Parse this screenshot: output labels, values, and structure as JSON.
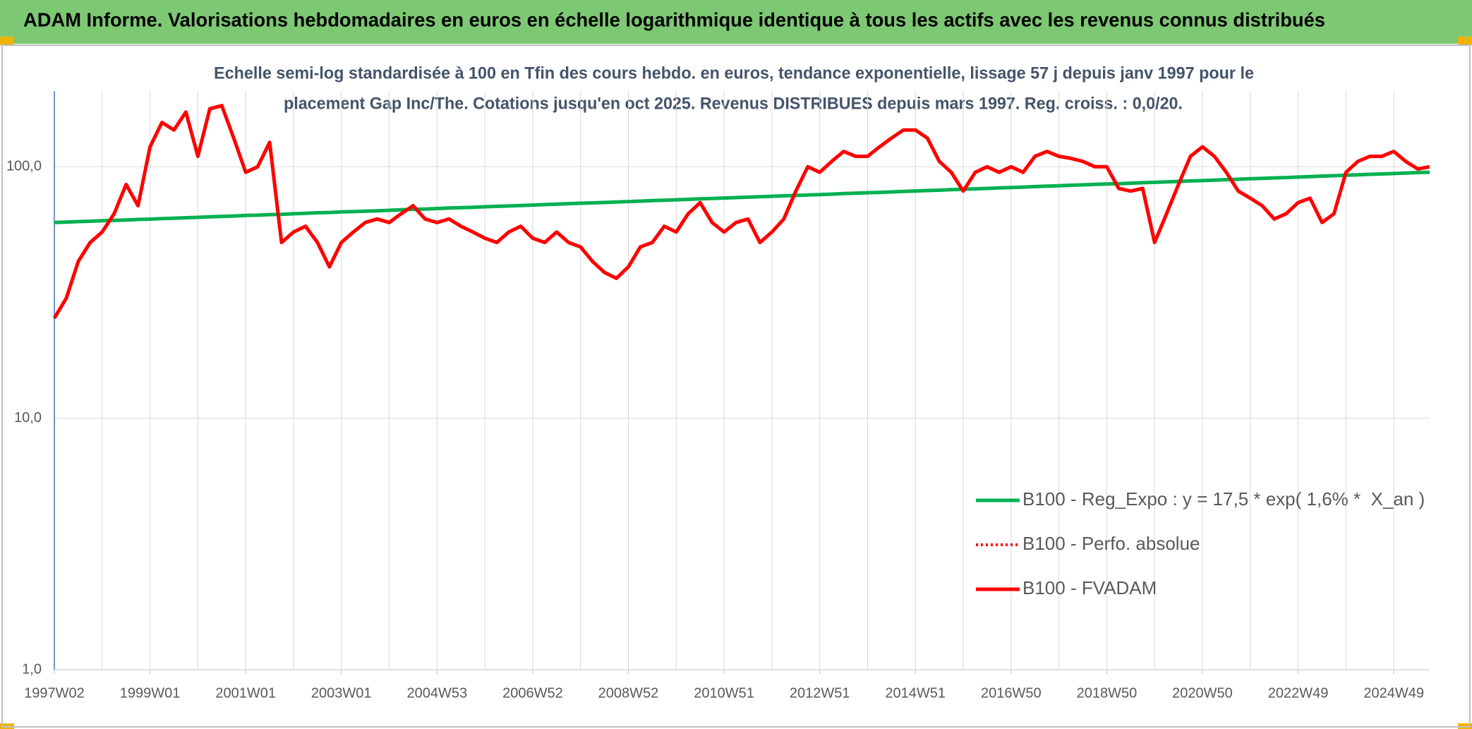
{
  "chart_data": {
    "type": "line",
    "title": "ADAM Informe. Valorisations hebdomadaires en euros en échelle logarithmique identique à tous les actifs avec les revenus connus distribués",
    "subtitle": [
      "Echelle semi-log standardisée à 100 en Tfin des cours hebdo. en euros, tendance exponentielle, lissage 57 j depuis janv 1997 pour le",
      "placement Gap Inc/The. Cotations jusqu'en oct 2025. Revenus DISTRIBUES depuis mars 1997. Reg. croiss. : 0,0/20."
    ],
    "log_scale": true,
    "grid": true,
    "legend": "right",
    "ylim": [
      1,
      200
    ],
    "yticks": [
      {
        "value": 1,
        "label": "1,0"
      },
      {
        "value": 10,
        "label": "10,0"
      },
      {
        "value": 100,
        "label": "100,0"
      }
    ],
    "categories": [
      "1997W02",
      null,
      null,
      null,
      null,
      null,
      null,
      null,
      "1999W01",
      null,
      null,
      null,
      null,
      null,
      null,
      null,
      "2001W01",
      null,
      null,
      null,
      null,
      null,
      null,
      null,
      "2003W01",
      null,
      null,
      null,
      null,
      null,
      null,
      null,
      "2004W53",
      null,
      null,
      null,
      null,
      null,
      null,
      null,
      "2006W52",
      null,
      null,
      null,
      null,
      null,
      null,
      null,
      "2008W52",
      null,
      null,
      null,
      null,
      null,
      null,
      null,
      "2010W51",
      null,
      null,
      null,
      null,
      null,
      null,
      null,
      "2012W51",
      null,
      null,
      null,
      null,
      null,
      null,
      null,
      "2014W51",
      null,
      null,
      null,
      null,
      null,
      null,
      null,
      "2016W50",
      null,
      null,
      null,
      null,
      null,
      null,
      null,
      "2018W50",
      null,
      null,
      null,
      null,
      null,
      null,
      null,
      "2020W50",
      null,
      null,
      null,
      null,
      null,
      null,
      null,
      "2022W49",
      null,
      null,
      null,
      null,
      null,
      null,
      null,
      "2024W49",
      null,
      null,
      null
    ],
    "series": [
      {
        "name": "B100 - Reg_Expo : y = 17,5 * exp( 1,6% *  X_an )",
        "color": "#00b050",
        "line_style": "solid",
        "values": [
          60.0,
          60.2,
          60.5,
          60.7,
          61.0,
          61.2,
          61.4,
          61.7,
          61.9,
          62.2,
          62.4,
          62.7,
          62.9,
          63.2,
          63.5,
          63.7,
          64.0,
          64.2,
          64.5,
          64.7,
          65.0,
          65.3,
          65.6,
          65.8,
          66.1,
          66.3,
          66.6,
          66.8,
          67.1,
          67.4,
          67.7,
          67.9,
          68.2,
          68.5,
          68.8,
          69.0,
          69.3,
          69.6,
          69.8,
          70.1,
          70.4,
          70.7,
          71.0,
          71.3,
          71.6,
          71.8,
          72.1,
          72.4,
          72.7,
          73.0,
          73.3,
          73.6,
          73.9,
          74.2,
          74.5,
          74.8,
          75.1,
          75.4,
          75.7,
          76.0,
          76.3,
          76.6,
          76.9,
          77.2,
          77.5,
          77.8,
          78.2,
          78.5,
          78.8,
          79.1,
          79.4,
          79.8,
          80.1,
          80.4,
          80.7,
          81.1,
          81.4,
          81.7,
          82.0,
          82.4,
          82.7,
          83.0,
          83.4,
          83.7,
          84.0,
          84.4,
          84.7,
          85.1,
          85.4,
          85.7,
          86.0,
          86.4,
          86.7,
          87.1,
          87.4,
          87.8,
          88.1,
          88.5,
          88.9,
          89.2,
          89.6,
          89.9,
          90.3,
          90.6,
          91.0,
          91.4,
          91.8,
          92.1,
          92.5,
          92.9,
          93.3,
          93.6,
          94.0,
          94.4,
          94.8,
          95.1
        ]
      },
      {
        "name": "B100 - Perfo. absolue",
        "color": "#ff0000",
        "line_style": "dotted",
        "values": [
          25,
          30,
          42,
          50,
          55,
          65,
          85,
          70,
          120,
          150,
          140,
          165,
          110,
          170,
          175,
          130,
          95,
          100,
          125,
          50,
          55,
          58,
          50,
          40,
          50,
          55,
          60,
          62,
          60,
          65,
          70,
          62,
          60,
          62,
          58,
          55,
          52,
          50,
          55,
          58,
          52,
          50,
          55,
          50,
          48,
          42,
          38,
          36,
          40,
          48,
          50,
          58,
          55,
          65,
          72,
          60,
          55,
          60,
          62,
          50,
          55,
          62,
          80,
          100,
          95,
          105,
          115,
          110,
          110,
          120,
          130,
          140,
          140,
          130,
          105,
          95,
          80,
          95,
          100,
          95,
          100,
          95,
          110,
          115,
          110,
          108,
          105,
          100,
          100,
          82,
          80,
          82,
          50,
          65,
          85,
          110,
          120,
          110,
          95,
          80,
          75,
          70,
          62,
          65,
          72,
          75,
          60,
          65,
          95,
          105,
          110,
          110,
          115,
          105,
          98,
          100
        ]
      },
      {
        "name": "B100 - FVADAM",
        "color": "#ff0000",
        "line_style": "solid",
        "values": [
          25,
          30,
          42,
          50,
          55,
          65,
          85,
          70,
          120,
          150,
          140,
          165,
          110,
          170,
          175,
          130,
          95,
          100,
          125,
          50,
          55,
          58,
          50,
          40,
          50,
          55,
          60,
          62,
          60,
          65,
          70,
          62,
          60,
          62,
          58,
          55,
          52,
          50,
          55,
          58,
          52,
          50,
          55,
          50,
          48,
          42,
          38,
          36,
          40,
          48,
          50,
          58,
          55,
          65,
          72,
          60,
          55,
          60,
          62,
          50,
          55,
          62,
          80,
          100,
          95,
          105,
          115,
          110,
          110,
          120,
          130,
          140,
          140,
          130,
          105,
          95,
          80,
          95,
          100,
          95,
          100,
          95,
          110,
          115,
          110,
          108,
          105,
          100,
          100,
          82,
          80,
          82,
          50,
          65,
          85,
          110,
          120,
          110,
          95,
          80,
          75,
          70,
          62,
          65,
          72,
          75,
          60,
          65,
          95,
          105,
          110,
          110,
          115,
          105,
          98,
          100
        ]
      }
    ]
  }
}
